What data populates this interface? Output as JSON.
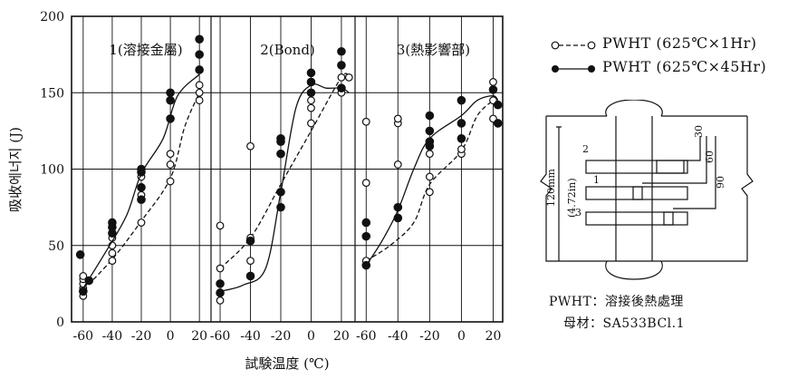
{
  "chart_data": {
    "type": "scatter",
    "ylabel": "吸收에너지 (J)",
    "xlabel": "試験温度 (℃)",
    "y_ticks": [
      "0",
      "50",
      "100",
      "150",
      "200"
    ],
    "ylim": [
      0,
      200
    ],
    "panels": [
      {
        "title": "1(溶接金屬)",
        "x_ticks": [
          "-60",
          "-40",
          "-20",
          "0",
          "20"
        ],
        "xlim": [
          -68,
          28
        ],
        "series": [
          {
            "name": "PWHT (625℃×1Hr)",
            "marker": "open",
            "points": [
              [
                -60,
                17
              ],
              [
                -60,
                22
              ],
              [
                -60,
                25
              ],
              [
                -60,
                28
              ],
              [
                -60,
                30
              ],
              [
                -40,
                40
              ],
              [
                -40,
                45
              ],
              [
                -40,
                50
              ],
              [
                -40,
                55
              ],
              [
                -20,
                65
              ],
              [
                -20,
                83
              ],
              [
                -20,
                88
              ],
              [
                -20,
                95
              ],
              [
                0,
                92
              ],
              [
                0,
                103
              ],
              [
                0,
                110
              ],
              [
                20,
                145
              ],
              [
                20,
                150
              ],
              [
                20,
                155
              ]
            ],
            "curve": [
              [
                -60,
                21
              ],
              [
                -40,
                41
              ],
              [
                -20,
                66
              ],
              [
                0,
                94
              ],
              [
                10,
                128
              ],
              [
                20,
                150
              ]
            ]
          },
          {
            "name": "PWHT (625℃×45Hr)",
            "marker": "filled",
            "points": [
              [
                -62,
                44
              ],
              [
                -60,
                20
              ],
              [
                -56,
                27
              ],
              [
                -40,
                58
              ],
              [
                -40,
                62
              ],
              [
                -40,
                65
              ],
              [
                -20,
                80
              ],
              [
                -20,
                88
              ],
              [
                -20,
                98
              ],
              [
                -20,
                100
              ],
              [
                0,
                133
              ],
              [
                0,
                145
              ],
              [
                0,
                150
              ],
              [
                20,
                165
              ],
              [
                20,
                175
              ],
              [
                20,
                185
              ]
            ],
            "curve": [
              [
                -62,
                19
              ],
              [
                -45,
                45
              ],
              [
                -30,
                70
              ],
              [
                -20,
                97
              ],
              [
                -5,
                120
              ],
              [
                5,
                148
              ],
              [
                20,
                162
              ]
            ]
          }
        ]
      },
      {
        "title": "2(Bond)",
        "x_ticks": [
          "-60",
          "-40",
          "-20",
          "0",
          "20"
        ],
        "xlim": [
          -66,
          29
        ],
        "series": [
          {
            "name": "PWHT (625℃×1Hr)",
            "marker": "open",
            "points": [
              [
                -60,
                14
              ],
              [
                -60,
                35
              ],
              [
                -60,
                63
              ],
              [
                -40,
                40
              ],
              [
                -40,
                55
              ],
              [
                -40,
                115
              ],
              [
                -20,
                110
              ],
              [
                -20,
                120
              ],
              [
                0,
                130
              ],
              [
                0,
                140
              ],
              [
                0,
                145
              ],
              [
                20,
                150
              ],
              [
                20,
                160
              ],
              [
                25,
                160
              ]
            ],
            "curve": [
              [
                -60,
                35
              ],
              [
                -40,
                55
              ],
              [
                -20,
                90
              ],
              [
                0,
                125
              ],
              [
                20,
                160
              ],
              [
                25,
                160
              ]
            ]
          },
          {
            "name": "PWHT (625℃×45Hr)",
            "marker": "filled",
            "points": [
              [
                -60,
                19
              ],
              [
                -60,
                25
              ],
              [
                -40,
                30
              ],
              [
                -40,
                53
              ],
              [
                -20,
                75
              ],
              [
                -20,
                85
              ],
              [
                -20,
                110
              ],
              [
                -20,
                118
              ],
              [
                -20,
                120
              ],
              [
                0,
                150
              ],
              [
                0,
                157
              ],
              [
                0,
                163
              ],
              [
                20,
                153
              ],
              [
                20,
                168
              ],
              [
                20,
                177
              ]
            ],
            "curve": [
              [
                -60,
                20
              ],
              [
                -45,
                24
              ],
              [
                -30,
                35
              ],
              [
                -20,
                85
              ],
              [
                -10,
                140
              ],
              [
                0,
                155
              ],
              [
                10,
                153
              ],
              [
                20,
                153
              ],
              [
                25,
                150
              ]
            ]
          }
        ]
      },
      {
        "title": "3(熱影響部)",
        "x_ticks": [
          "-60",
          "-40",
          "-20",
          "0",
          "20"
        ],
        "xlim": [
          -67,
          26
        ],
        "series": [
          {
            "name": "PWHT (625℃×1Hr)",
            "marker": "open",
            "points": [
              [
                -60,
                40
              ],
              [
                -60,
                91
              ],
              [
                -60,
                131
              ],
              [
                -40,
                103
              ],
              [
                -40,
                130
              ],
              [
                -40,
                133
              ],
              [
                -20,
                85
              ],
              [
                -20,
                95
              ],
              [
                -20,
                110
              ],
              [
                0,
                110
              ],
              [
                0,
                113
              ],
              [
                0,
                120
              ],
              [
                20,
                133
              ],
              [
                20,
                145
              ],
              [
                20,
                157
              ]
            ],
            "curve": [
              [
                -60,
                40
              ],
              [
                -45,
                50
              ],
              [
                -30,
                65
              ],
              [
                -20,
                90
              ],
              [
                0,
                112
              ],
              [
                10,
                135
              ],
              [
                20,
                145
              ]
            ]
          },
          {
            "name": "PWHT (625℃×45Hr)",
            "marker": "filled",
            "points": [
              [
                -60,
                37
              ],
              [
                -60,
                56
              ],
              [
                -60,
                65
              ],
              [
                -40,
                68
              ],
              [
                -40,
                75
              ],
              [
                -20,
                115
              ],
              [
                -20,
                118
              ],
              [
                -20,
                125
              ],
              [
                -20,
                135
              ],
              [
                0,
                120
              ],
              [
                0,
                130
              ],
              [
                0,
                145
              ],
              [
                20,
                152
              ],
              [
                23,
                130
              ],
              [
                23,
                142
              ]
            ],
            "curve": [
              [
                -60,
                37
              ],
              [
                -50,
                53
              ],
              [
                -40,
                73
              ],
              [
                -30,
                100
              ],
              [
                -20,
                120
              ],
              [
                0,
                135
              ],
              [
                10,
                145
              ],
              [
                20,
                148
              ],
              [
                23,
                145
              ]
            ]
          }
        ]
      }
    ],
    "legend": {
      "placement": "right",
      "items": [
        {
          "label": "PWHT (625℃×1Hr)",
          "marker": "open",
          "line": "dashed"
        },
        {
          "label": "PWHT (625℃×45Hr)",
          "marker": "filled",
          "line": "solid"
        }
      ]
    },
    "specimen": {
      "dims": [
        "120mm",
        "(4.72in)",
        "30",
        "60",
        "90"
      ],
      "labels": [
        "1",
        "2",
        "3"
      ]
    },
    "notes": [
      "PWHT：溶接後熱處理",
      "母材：SA533BCl.1"
    ]
  }
}
